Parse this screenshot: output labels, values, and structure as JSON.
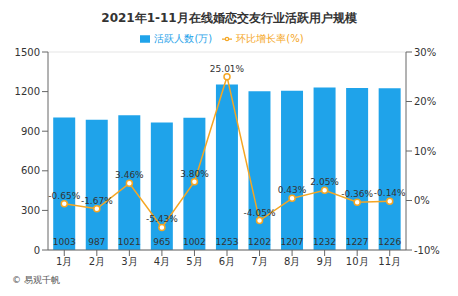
{
  "chart_data": {
    "type": "bar",
    "title": "2021年1-11月在线婚恋交友行业活跃用户规模",
    "annotations": [
      "© 易观千帆"
    ],
    "categories": [
      "1月",
      "2月",
      "3月",
      "4月",
      "5月",
      "6月",
      "7月",
      "8月",
      "9月",
      "10月",
      "11月"
    ],
    "series": [
      {
        "name": "活跃人数(万)",
        "type": "bar",
        "color": "#1fa3ea",
        "values": [
          1003,
          987,
          1021,
          965,
          1002,
          1253,
          1202,
          1207,
          1232,
          1227,
          1226
        ]
      },
      {
        "name": "环比增长率(%)",
        "type": "line",
        "axis": "y2",
        "color": "#f5a623",
        "marker": "circle",
        "values": [
          -0.65,
          -1.67,
          3.46,
          -5.43,
          3.8,
          25.01,
          -4.05,
          0.43,
          2.05,
          -0.36,
          -0.14
        ],
        "value_labels": [
          "-0.65%",
          "-1.67%",
          "3.46%",
          "-5.43%",
          "3.80%",
          "25.01%",
          "-4.05%",
          "0.43%",
          "2.05%",
          "-0.36%",
          "-0.14%"
        ]
      }
    ],
    "ylim": [
      0,
      1500
    ],
    "yticks": [
      0,
      300,
      600,
      900,
      1200,
      1500
    ],
    "y2lim": [
      -10,
      30
    ],
    "y2ticks": [
      {
        "value": -10,
        "label": "-10%"
      },
      {
        "value": 0,
        "label": "0%"
      },
      {
        "value": 10,
        "label": "10%"
      },
      {
        "value": 20,
        "label": "20%"
      },
      {
        "value": 30,
        "label": "30%"
      }
    ],
    "grid": true,
    "data_labels": true,
    "legend": "top"
  }
}
